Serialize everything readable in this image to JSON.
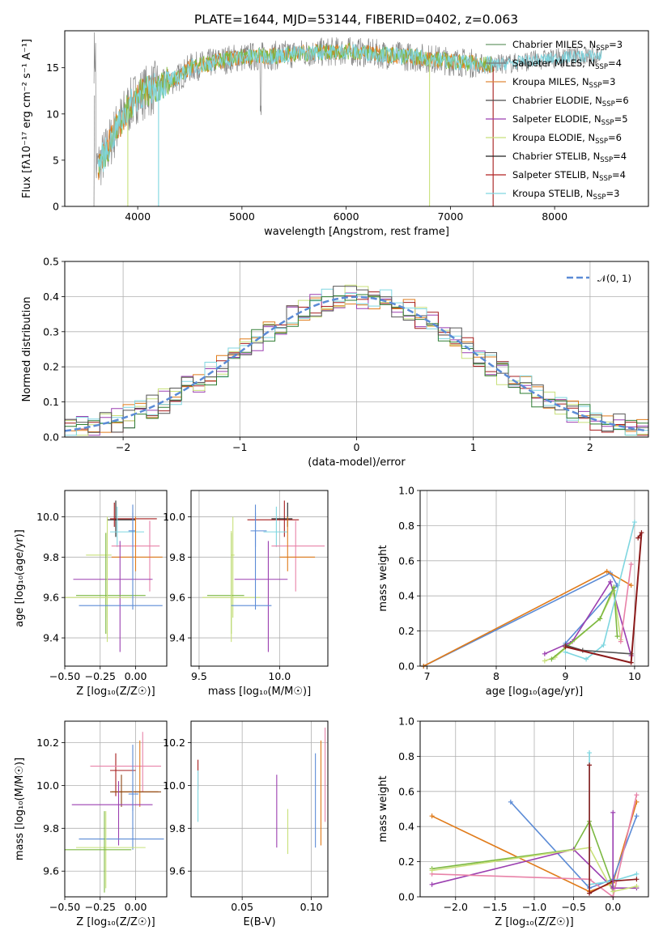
{
  "colors": {
    "series": [
      "#6a9a6a",
      "#7a7a7a",
      "#e0893a",
      "#4a4a4a",
      "#9b3fb0",
      "#c8e07a",
      "#222222",
      "#b22222",
      "#7fd6e0"
    ],
    "blue": "#5b8bd6",
    "orange": "#e07b1a",
    "green": "#7cb842",
    "purple": "#9b3fb0",
    "pink": "#e882a8",
    "lime": "#c8e07a",
    "red": "#a51c1c",
    "cyan": "#7fd6e0",
    "darkred": "#8b1a1a",
    "gray": "#888888"
  },
  "chart_data": [
    {
      "type": "line",
      "title": "PLATE=1644, MJD=53144, FIBERID=0402, z=0.063",
      "xlabel": "wavelength [Angstrom, rest frame]",
      "ylabel": "Flux [fλ10⁻¹⁷ erg cm⁻² s⁻¹ A⁻¹]",
      "xlim": [
        3300,
        8900
      ],
      "ylim": [
        0,
        19
      ],
      "xticks": [
        4000,
        5000,
        6000,
        7000,
        8000
      ],
      "yticks": [
        0,
        5,
        10,
        15
      ],
      "legend_position": "right",
      "series": [
        {
          "name": "Chabrier MILES, N",
          "sub": "SSP",
          "suffix": "=3"
        },
        {
          "name": "Salpeter MILES, N",
          "sub": "SSP",
          "suffix": "=4"
        },
        {
          "name": "Kroupa MILES, N",
          "sub": "SSP",
          "suffix": "=3"
        },
        {
          "name": "Chabrier ELODIE, N",
          "sub": "SSP",
          "suffix": "=6"
        },
        {
          "name": "Salpeter ELODIE, N",
          "sub": "SSP",
          "suffix": "=5"
        },
        {
          "name": "Kroupa ELODIE, N",
          "sub": "SSP",
          "suffix": "=6"
        },
        {
          "name": "Chabrier STELIB, N",
          "sub": "SSP",
          "suffix": "=4"
        },
        {
          "name": "Salpeter STELIB, N",
          "sub": "SSP",
          "suffix": "=4"
        },
        {
          "name": "Kroupa STELIB, N",
          "sub": "SSP",
          "suffix": "=3"
        }
      ],
      "continuum": {
        "x": [
          3600,
          3700,
          3800,
          3900,
          4000,
          4100,
          4200,
          4300,
          4400,
          4500,
          4700,
          4900,
          5100,
          5300,
          5500,
          5800,
          6000,
          6200,
          6500,
          6800,
          7000,
          7200,
          7400,
          7600,
          7800,
          8000,
          8200,
          8400
        ],
        "y": [
          4,
          6,
          8.5,
          10.5,
          12,
          12.5,
          13,
          13.5,
          14,
          15,
          15.5,
          16,
          16.2,
          16.3,
          16.5,
          16.7,
          16.8,
          16.6,
          16.3,
          16,
          15.7,
          15.5,
          15.3,
          15.5,
          15.8,
          16,
          16.2,
          16.3
        ]
      },
      "data_range": [
        3580,
        8450
      ],
      "model_range": [
        3620,
        7420
      ]
    },
    {
      "type": "bar",
      "xlabel": "(data-model)/error",
      "ylabel": "Normed distribution",
      "xlim": [
        -2.5,
        2.5
      ],
      "ylim": [
        0,
        0.5
      ],
      "xticks": [
        -2,
        -1,
        0,
        1,
        2
      ],
      "yticks": [
        0.0,
        0.1,
        0.2,
        0.3,
        0.4,
        0.5
      ],
      "legend": "𝒩(0, 1)",
      "legend_position": "top-right",
      "bin_width": 0.1,
      "bin_start": -2.5
    },
    {
      "type": "scatter",
      "xlabel": "Z [log₁₀(Z/Z☉)]",
      "ylabel": "age  [log₁₀(age/yr)]",
      "xlim": [
        -0.5,
        0.22
      ],
      "ylim": [
        9.26,
        10.13
      ],
      "xticks": [
        -0.5,
        -0.25,
        0.0
      ],
      "xticklabels": [
        "−0.50",
        "−0.25",
        "0.00"
      ],
      "yticks": [
        9.4,
        9.6,
        9.8,
        10.0
      ]
    },
    {
      "type": "scatter",
      "xlabel": "mass [log₁₀(M/M☉)]",
      "ylabel": "",
      "xlim": [
        9.45,
        10.3
      ],
      "ylim": [
        9.26,
        10.13
      ],
      "xticks": [
        9.5,
        10.0
      ],
      "xticklabels": [
        "9.5",
        "10.0"
      ],
      "yticks": [
        9.4,
        9.6,
        9.8,
        10.0
      ]
    },
    {
      "type": "line",
      "xlabel": "age  [log₁₀(age/yr)]",
      "ylabel": "mass weight",
      "xlim": [
        6.9,
        10.2
      ],
      "ylim": [
        0,
        1
      ],
      "xticks": [
        7,
        8,
        9,
        10
      ],
      "yticks": [
        0.0,
        0.2,
        0.4,
        0.6,
        0.8,
        1.0
      ]
    },
    {
      "type": "scatter",
      "xlabel": "Z [log₁₀(Z/Z☉)]",
      "ylabel": "mass [log₁₀(M/M☉)]",
      "xlim": [
        -0.5,
        0.22
      ],
      "ylim": [
        9.48,
        10.3
      ],
      "xticks": [
        -0.5,
        -0.25,
        0.0
      ],
      "xticklabels": [
        "−0.50",
        "−0.25",
        "0.00"
      ],
      "yticks": [
        9.6,
        9.8,
        10.0,
        10.2
      ]
    },
    {
      "type": "scatter",
      "xlabel": "E(B-V)",
      "ylabel": "",
      "xlim": [
        0.013,
        0.112
      ],
      "ylim": [
        9.48,
        10.3
      ],
      "xticks": [
        0.05,
        0.1
      ],
      "xticklabels": [
        "0.05",
        "0.10"
      ],
      "yticks": [
        9.6,
        9.8,
        10.0,
        10.2
      ]
    },
    {
      "type": "line",
      "xlabel": "Z [log₁₀(Z/Z☉)]",
      "ylabel": "mass weight",
      "xlim": [
        -2.45,
        0.45
      ],
      "ylim": [
        0,
        1
      ],
      "xticks": [
        -2.0,
        -1.5,
        -1.0,
        -0.5,
        0.0
      ],
      "xticklabels": [
        "−2.0",
        "−1.5",
        "−1.0",
        "−0.5",
        "0.0"
      ],
      "yticks": [
        0.0,
        0.2,
        0.4,
        0.6,
        0.8,
        1.0
      ]
    }
  ]
}
